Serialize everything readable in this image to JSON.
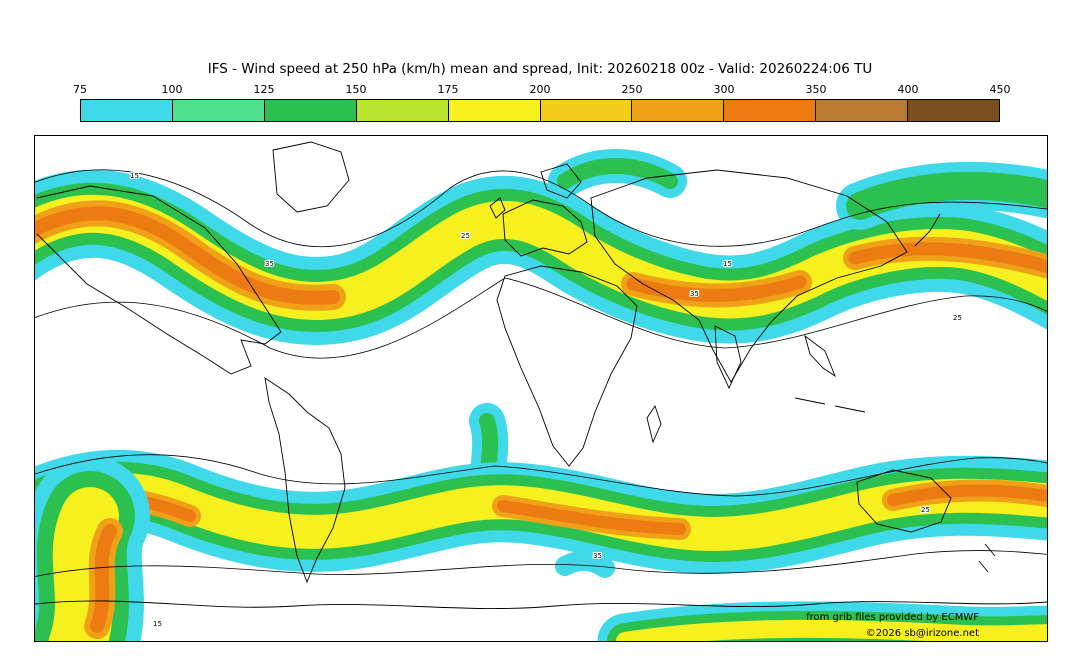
{
  "title": "IFS - Wind speed at 250 hPa (km/h) mean and spread, Init: 20260218 00z - Valid: 20260224:06 TU",
  "colorbar": {
    "tick_labels": [
      "75",
      "100",
      "125",
      "150",
      "175",
      "200",
      "250",
      "300",
      "350",
      "400",
      "450"
    ],
    "segment_colors": [
      "#3fd9e9",
      "#4ee08c",
      "#2cc050",
      "#b8e42c",
      "#f6f01e",
      "#f2ce1b",
      "#efa117",
      "#ec7c12",
      "#b97a33",
      "#7d4f1e"
    ]
  },
  "map": {
    "contour_labels": [
      "15",
      "25",
      "35"
    ],
    "credit_line1": "from grib files provided by ECMWF",
    "credit_line2": "©2026 sb@irizone.net"
  },
  "chart_data": {
    "type": "heatmap",
    "title": "IFS - Wind speed at 250 hPa (km/h) mean and spread",
    "init": "20260218 00z",
    "valid": "20260224:06 TU",
    "colorbar_levels_kmh": [
      75,
      100,
      125,
      150,
      175,
      200,
      250,
      300,
      350,
      400,
      450
    ],
    "colorbar_colors": [
      "#3fd9e9",
      "#4ee08c",
      "#2cc050",
      "#b8e42c",
      "#f6f01e",
      "#f2ce1b",
      "#efa117",
      "#ec7c12",
      "#b97a33",
      "#7d4f1e"
    ],
    "spread_contour_levels": [
      15,
      25,
      35
    ],
    "legend_position": "top",
    "notes": "Filled contours of 250 hPa wind speed (jet streams) over a world map; black line contours show ensemble spread labeled 15/25/35; strongest cores (orange ~300 km/h) over North America, the Middle East and the NW Pacific, plus southern-hemisphere jet bands."
  }
}
